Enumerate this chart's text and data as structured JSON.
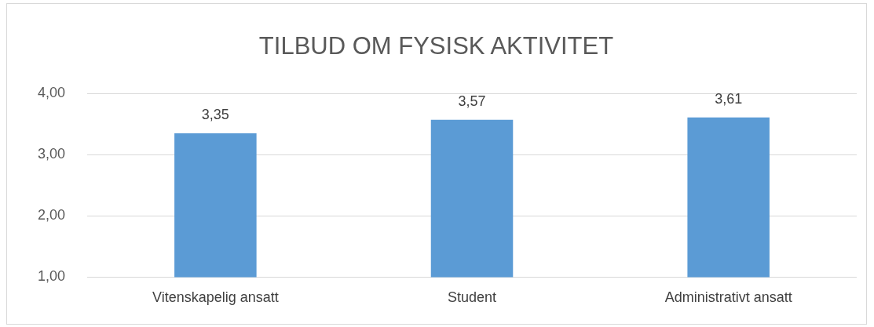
{
  "chart_data": {
    "type": "bar",
    "title": "TILBUD OM FYSISK AKTIVITET",
    "categories": [
      "Vitenskapelig ansatt",
      "Student",
      "Administrativt ansatt"
    ],
    "values": [
      3.35,
      3.57,
      3.61
    ],
    "color": "#5b9bd5",
    "value_labels": [
      "3,35",
      "3,57",
      "3,61"
    ],
    "ylim": [
      1,
      4
    ],
    "yticks": [
      {
        "value": 1,
        "label": "1,00"
      },
      {
        "value": 2,
        "label": "2,00"
      },
      {
        "value": 3,
        "label": "3,00"
      },
      {
        "value": 4,
        "label": "4,00"
      }
    ],
    "grid": "y",
    "legend": false
  }
}
